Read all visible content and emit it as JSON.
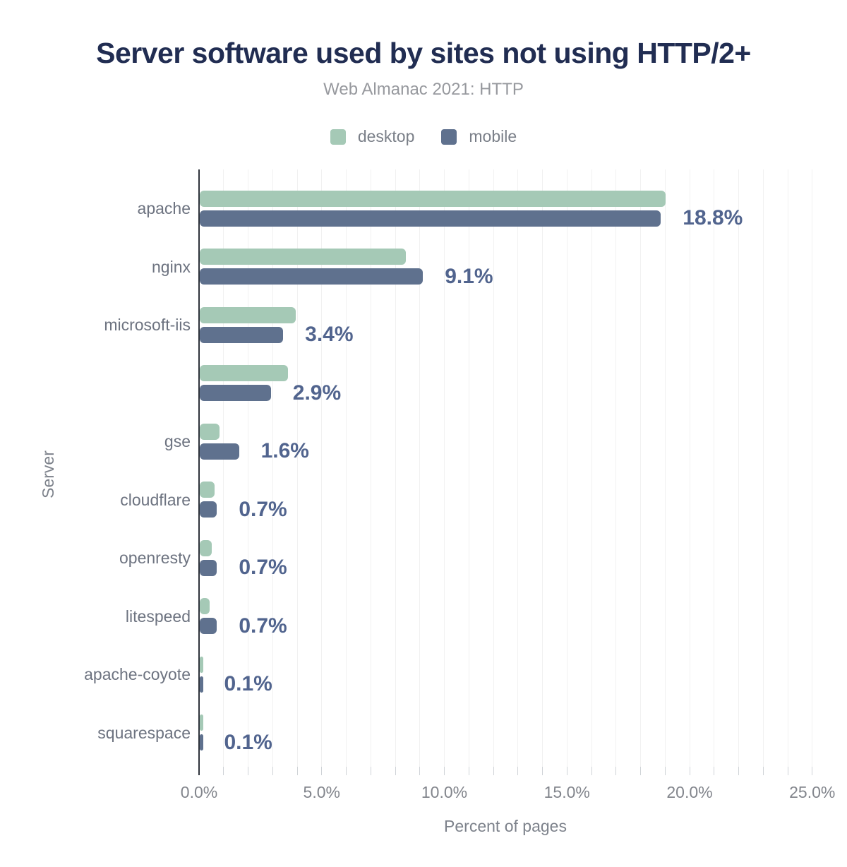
{
  "header": {
    "title": "Server software used by sites not using HTTP/2+",
    "subtitle": "Web Almanac 2021: HTTP"
  },
  "legend": {
    "items": [
      {
        "label": "desktop",
        "color": "#a5c9b6"
      },
      {
        "label": "mobile",
        "color": "#5f718e"
      }
    ]
  },
  "chart_data": {
    "type": "bar",
    "orientation": "horizontal",
    "title": "Server software used by sites not using HTTP/2+",
    "subtitle": "Web Almanac 2021: HTTP",
    "xlabel": "Percent of pages",
    "ylabel": "Server",
    "xlim": [
      0,
      25
    ],
    "grid": "vertical lines every 1%, no bottom axis line, dark baseline at 0%",
    "legend_position": "top-center",
    "categories": [
      "apache",
      "nginx",
      "microsoft-iis",
      "",
      "gse",
      "cloudflare",
      "openresty",
      "litespeed",
      "apache-coyote",
      "squarespace"
    ],
    "series": [
      {
        "name": "desktop",
        "color": "#a5c9b6",
        "values": [
          19.0,
          8.4,
          3.9,
          3.6,
          0.8,
          0.6,
          0.5,
          0.4,
          0.15,
          0.1
        ]
      },
      {
        "name": "mobile",
        "color": "#5f718e",
        "values": [
          18.8,
          9.1,
          3.4,
          2.9,
          1.6,
          0.7,
          0.7,
          0.7,
          0.1,
          0.1
        ]
      }
    ],
    "data_labels": [
      "18.8%",
      "9.1%",
      "3.4%",
      "2.9%",
      "1.6%",
      "0.7%",
      "0.7%",
      "0.7%",
      "0.1%",
      "0.1%"
    ],
    "xticks": [
      {
        "value": 0,
        "label": "0.0%"
      },
      {
        "value": 5,
        "label": "5.0%"
      },
      {
        "value": 10,
        "label": "10.0%"
      },
      {
        "value": 15,
        "label": "15.0%"
      },
      {
        "value": 20,
        "label": "20.0%"
      },
      {
        "value": 25,
        "label": "25.0%"
      }
    ]
  },
  "colors": {
    "background": "#ffffff",
    "title": "#212d52",
    "subtitle": "#97999e",
    "legend_text": "#7a7f88",
    "desktop_bar": "#a5c9b6",
    "mobile_bar": "#5f718e",
    "value_label": "#51648e",
    "category_label": "#6d7380",
    "tick_label": "#82858c",
    "axis_title": "#7d828b",
    "gridline": "#f1f1f1",
    "tick_mark": "#cfd3d7",
    "axis_line": "#2f343c"
  }
}
